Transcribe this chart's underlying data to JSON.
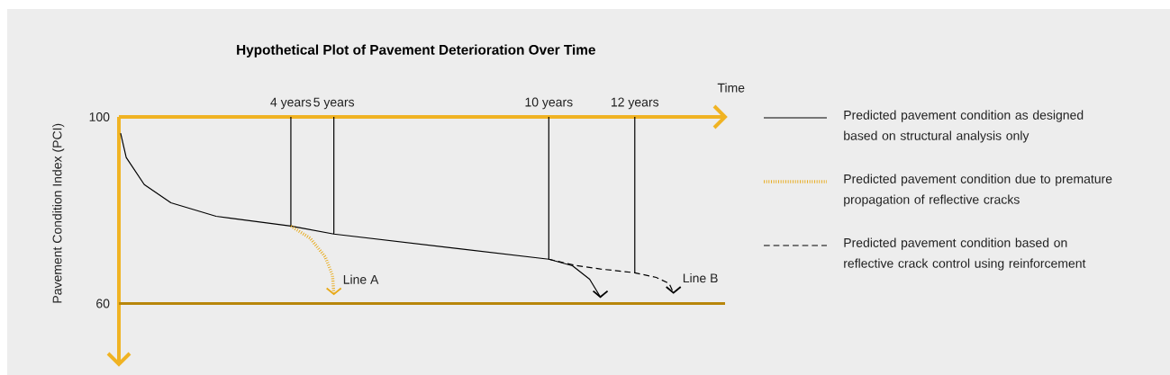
{
  "chart_data": {
    "type": "line",
    "title": "Hypothetical Plot of Pavement Deterioration Over Time",
    "xlabel": "Time",
    "ylabel": "Pavement Condition Index (PCI)",
    "xlim": [
      0,
      14.1
    ],
    "ylim": [
      47,
      100
    ],
    "xticks": [
      {
        "value": 4,
        "label": "4 years"
      },
      {
        "value": 5,
        "label": "5 years"
      },
      {
        "value": 10,
        "label": "10 years"
      },
      {
        "value": 12,
        "label": "12 years"
      }
    ],
    "yticks": [
      60,
      100
    ],
    "legend": "right",
    "marker": "none",
    "series": [
      {
        "name": "Predicted pavement condition as designed based on structural analysis only",
        "color": "#000000",
        "line_style": "solid",
        "x": [
          0.04,
          0.17,
          0.59,
          1.21,
          2.26,
          4,
          5,
          10,
          10.55,
          10.95,
          11.2
        ],
        "values": [
          96.5,
          91.3,
          85.5,
          81.6,
          78.7,
          76.6,
          74.9,
          69.5,
          68.1,
          65.2,
          61.4
        ]
      },
      {
        "name": "Predicted pavement condition due to premature propagation of reflective cracks",
        "color": "#e8a917",
        "line_style": "dotted",
        "x": [
          4,
          4.45,
          4.8,
          4.97,
          5
        ],
        "values": [
          76.6,
          74,
          70,
          66,
          62
        ]
      },
      {
        "name": "Predicted pavement condition based on reflective crack control using reinforcement",
        "color": "#000000",
        "line_style": "dashed",
        "x": [
          10,
          10.6,
          11.2,
          12,
          12.5,
          12.8,
          12.9
        ],
        "values": [
          69.5,
          68.2,
          67.4,
          66.6,
          65.6,
          64.3,
          62.3
        ]
      }
    ],
    "ref_lines": [
      {
        "axis": "y",
        "value": 60,
        "color": "#b8860b"
      },
      {
        "axis": "x",
        "value": 4,
        "color": "#000000"
      },
      {
        "axis": "x",
        "value": 5,
        "color": "#000000"
      },
      {
        "axis": "x",
        "value": 10,
        "color": "#000000"
      },
      {
        "axis": "x",
        "value": 12,
        "color": "#000000"
      }
    ],
    "annotations": [
      {
        "text": "Line A",
        "x": 5,
        "y": 62
      },
      {
        "text": "Line B",
        "x": 12.9,
        "y": 62.3
      }
    ]
  }
}
